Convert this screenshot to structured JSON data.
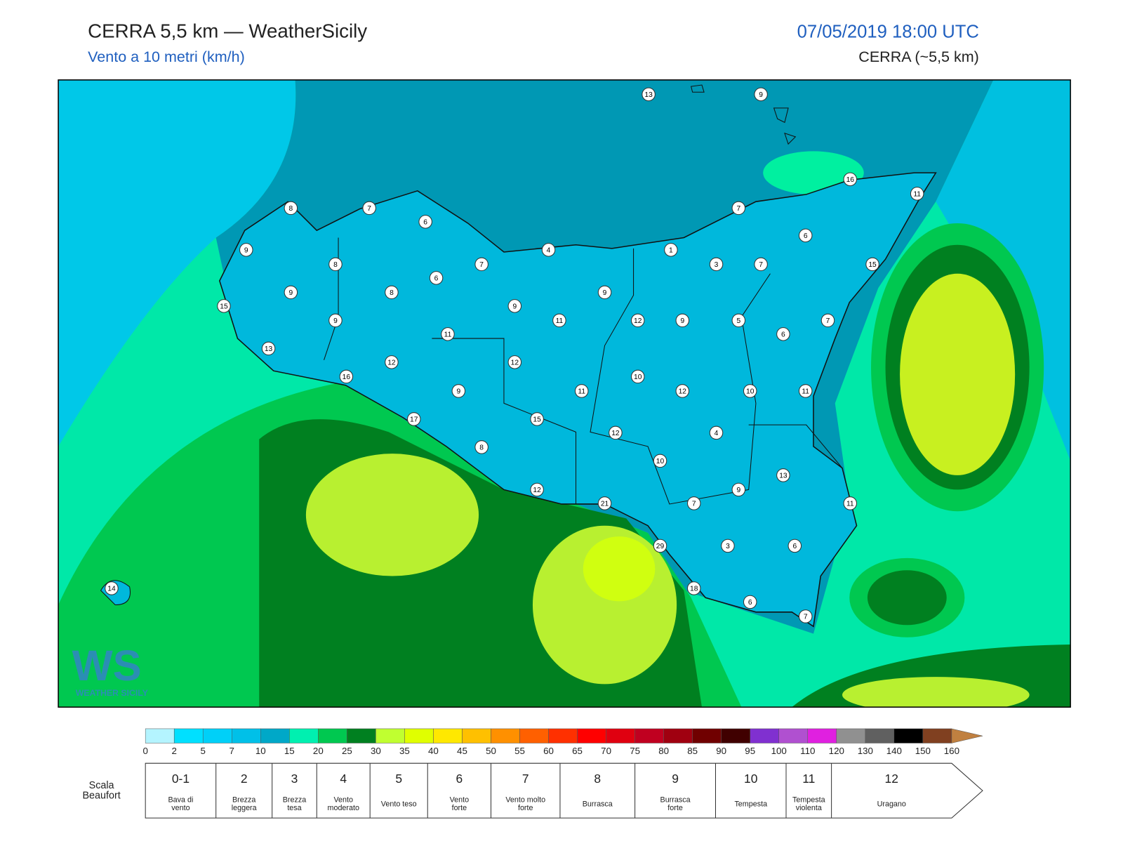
{
  "header": {
    "title": "CERRA 5,5 km — WeatherSicily",
    "subtitle": "Vento a 10 metri (km/h)",
    "datetime": "07/05/2019 18:00 UTC",
    "model": "CERRA (~5,5 km)"
  },
  "map": {
    "stations": [
      13,
      9,
      16,
      11,
      8,
      7,
      7,
      6,
      6,
      9,
      4,
      1,
      8,
      7,
      3,
      7,
      15,
      6,
      9,
      8,
      9,
      15,
      9,
      11,
      9,
      12,
      9,
      5,
      7,
      11,
      6,
      13,
      12,
      12,
      16,
      10,
      9,
      11,
      12,
      10,
      11,
      17,
      15,
      4,
      12,
      8,
      10,
      13,
      12,
      9,
      21,
      7,
      11,
      29,
      3,
      6,
      14,
      18,
      6,
      7
    ],
    "logo": {
      "mark": "WS",
      "caption": "WEATHER SICILY"
    }
  },
  "colorbar": {
    "ticks": [
      0,
      2,
      5,
      7,
      10,
      15,
      20,
      25,
      30,
      35,
      40,
      45,
      50,
      55,
      60,
      65,
      70,
      75,
      80,
      85,
      90,
      95,
      100,
      110,
      120,
      130,
      140,
      150,
      160
    ],
    "colors": [
      "#b4f4ff",
      "#00e0ff",
      "#00d0f8",
      "#00c0e8",
      "#00a8c8",
      "#00f0b0",
      "#00c850",
      "#008020",
      "#c0ff30",
      "#e0ff00",
      "#ffe800",
      "#ffc000",
      "#ff9000",
      "#ff6000",
      "#ff3000",
      "#ff0000",
      "#e00010",
      "#c00020",
      "#a00010",
      "#700000",
      "#400000",
      "#8030d0",
      "#b050d0",
      "#e020e0",
      "#909090",
      "#606060",
      "#000000",
      "#804020",
      "#c08040"
    ]
  },
  "beaufort": {
    "label": [
      "Scala",
      "Beaufort"
    ],
    "levels": [
      {
        "force": "0-1",
        "desc": [
          "Bava di",
          "vento"
        ]
      },
      {
        "force": 2,
        "desc": [
          "Brezza",
          "leggera"
        ]
      },
      {
        "force": 3,
        "desc": [
          "Brezza",
          "tesa"
        ]
      },
      {
        "force": 4,
        "desc": [
          "Vento",
          "moderato"
        ]
      },
      {
        "force": 5,
        "desc": [
          "Vento teso"
        ]
      },
      {
        "force": 6,
        "desc": [
          "Vento",
          "forte"
        ]
      },
      {
        "force": 7,
        "desc": [
          "Vento molto",
          "forte"
        ]
      },
      {
        "force": 8,
        "desc": [
          "Burrasca"
        ]
      },
      {
        "force": 9,
        "desc": [
          "Burrasca",
          "forte"
        ]
      },
      {
        "force": 10,
        "desc": [
          "Tempesta"
        ]
      },
      {
        "force": 11,
        "desc": [
          "Tempesta",
          "violenta"
        ]
      },
      {
        "force": 12,
        "desc": [
          "Uragano"
        ]
      }
    ]
  }
}
